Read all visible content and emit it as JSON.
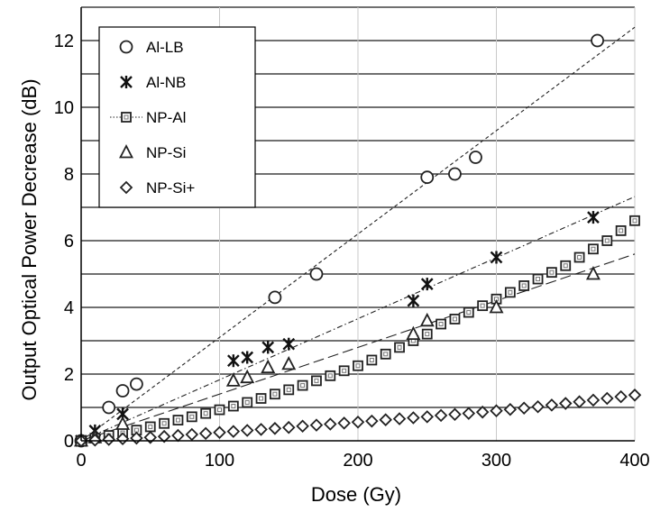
{
  "chart_data": {
    "type": "scatter",
    "title": "",
    "xlabel": "Dose (Gy)",
    "ylabel": "Output Optical Power Decrease (dB)",
    "xlim": [
      0,
      400
    ],
    "ylim": [
      0,
      13
    ],
    "x_ticks": [
      "0",
      "100",
      "200",
      "300",
      "400"
    ],
    "y_ticks": [
      "0",
      "2",
      "4",
      "6",
      "8",
      "10",
      "12"
    ],
    "grid": "major gridlines, both axes",
    "legend_position": "top-left (inside plot)",
    "series": [
      {
        "name": "Al-LB",
        "marker": "circle",
        "x": [
          0,
          20,
          30,
          40,
          140,
          170,
          250,
          270,
          285,
          373
        ],
        "y": [
          0,
          1.0,
          1.5,
          1.7,
          4.3,
          5.0,
          7.9,
          8.0,
          8.5,
          12.0
        ],
        "trend": {
          "style": "dashed",
          "slope": 0.031,
          "intercept": 0
        }
      },
      {
        "name": "Al-NB",
        "marker": "asterisk",
        "x": [
          0,
          10,
          30,
          110,
          120,
          135,
          150,
          240,
          250,
          300,
          370
        ],
        "y": [
          0,
          0.3,
          0.8,
          2.4,
          2.5,
          2.8,
          2.9,
          4.2,
          4.7,
          5.5,
          6.7
        ],
        "trend": {
          "style": "dash-dot",
          "slope": 0.0183,
          "intercept": 0
        }
      },
      {
        "name": "NP-Al",
        "marker": "square",
        "x": [
          0,
          10,
          20,
          30,
          40,
          50,
          60,
          70,
          80,
          90,
          100,
          110,
          120,
          130,
          140,
          150,
          160,
          170,
          180,
          190,
          200,
          210,
          220,
          230,
          240,
          250,
          260,
          270,
          280,
          290,
          300,
          310,
          320,
          330,
          340,
          350,
          360,
          370,
          380,
          390,
          400
        ],
        "y": [
          0,
          0.08,
          0.16,
          0.24,
          0.32,
          0.42,
          0.52,
          0.62,
          0.72,
          0.82,
          0.93,
          1.04,
          1.15,
          1.27,
          1.4,
          1.53,
          1.66,
          1.8,
          1.95,
          2.1,
          2.25,
          2.42,
          2.6,
          2.8,
          3.0,
          3.2,
          3.5,
          3.65,
          3.85,
          4.05,
          4.25,
          4.45,
          4.65,
          4.85,
          5.05,
          5.25,
          5.5,
          5.75,
          6.0,
          6.3,
          6.6
        ],
        "trend": null
      },
      {
        "name": "NP-Si",
        "marker": "triangle",
        "x": [
          0,
          10,
          30,
          110,
          120,
          135,
          150,
          240,
          250,
          300,
          370
        ],
        "y": [
          0,
          0.1,
          0.5,
          1.8,
          1.9,
          2.2,
          2.3,
          3.2,
          3.6,
          4.0,
          5.0
        ],
        "trend": {
          "style": "long-dash",
          "slope": 0.014,
          "intercept": 0
        }
      },
      {
        "name": "NP-Si+",
        "marker": "diamond",
        "x": [
          0,
          10,
          20,
          30,
          40,
          50,
          60,
          70,
          80,
          90,
          100,
          110,
          120,
          130,
          140,
          150,
          160,
          170,
          180,
          190,
          200,
          210,
          220,
          230,
          240,
          250,
          260,
          270,
          280,
          290,
          300,
          310,
          320,
          330,
          340,
          350,
          360,
          370,
          380,
          390,
          400
        ],
        "y": [
          0,
          0.02,
          0.04,
          0.06,
          0.08,
          0.1,
          0.13,
          0.16,
          0.19,
          0.22,
          0.25,
          0.28,
          0.31,
          0.34,
          0.37,
          0.4,
          0.44,
          0.47,
          0.5,
          0.53,
          0.56,
          0.59,
          0.63,
          0.66,
          0.69,
          0.72,
          0.76,
          0.79,
          0.82,
          0.86,
          0.9,
          0.94,
          0.98,
          1.02,
          1.07,
          1.12,
          1.17,
          1.22,
          1.27,
          1.32,
          1.37
        ],
        "trend": null
      }
    ]
  }
}
